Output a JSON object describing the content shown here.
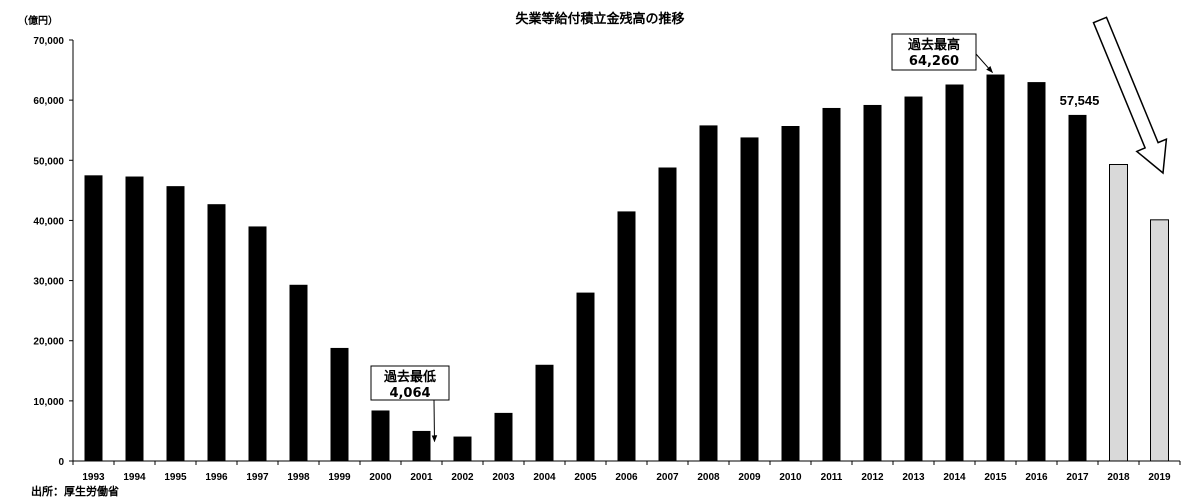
{
  "chart_data": {
    "type": "bar",
    "title": "失業等給付積立金残高の推移",
    "ylabel": "（億円）",
    "source": "出所：厚生労働省",
    "ylim": [
      0,
      70000
    ],
    "yticks": [
      0,
      10000,
      20000,
      30000,
      40000,
      50000,
      60000,
      70000
    ],
    "ytick_labels": [
      "0",
      "10,000",
      "20,000",
      "30,000",
      "40,000",
      "50,000",
      "60,000",
      "70,000"
    ],
    "grid": false,
    "categories": [
      "1993",
      "1994",
      "1995",
      "1996",
      "1997",
      "1998",
      "1999",
      "2000",
      "2001",
      "2002",
      "2003",
      "2004",
      "2005",
      "2006",
      "2007",
      "2008",
      "2009",
      "2010",
      "2011",
      "2012",
      "2013",
      "2014",
      "2015",
      "2016",
      "2017",
      "2018",
      "2019"
    ],
    "values": [
      47500,
      47300,
      45700,
      42700,
      39000,
      29300,
      18800,
      8400,
      5000,
      4064,
      8000,
      16000,
      28000,
      41500,
      48800,
      55800,
      53800,
      55700,
      58700,
      59200,
      60600,
      62600,
      64260,
      63000,
      57545,
      49300,
      40100
    ],
    "colors": {
      "actual": "#000000",
      "forecast": "#d9d9d9",
      "forecast_border": "#000000"
    },
    "forecast_categories": [
      "2018",
      "2019"
    ],
    "annotations": {
      "min": {
        "lines": [
          "過去最低",
          "4,064"
        ],
        "target": "2002",
        "value": 4064
      },
      "max": {
        "lines": [
          "過去最高",
          "64,260"
        ],
        "target": "2015",
        "value": 64260
      },
      "latest": {
        "text": "57,545",
        "target": "2017",
        "value": 57545
      }
    },
    "trend_arrow": "down"
  }
}
